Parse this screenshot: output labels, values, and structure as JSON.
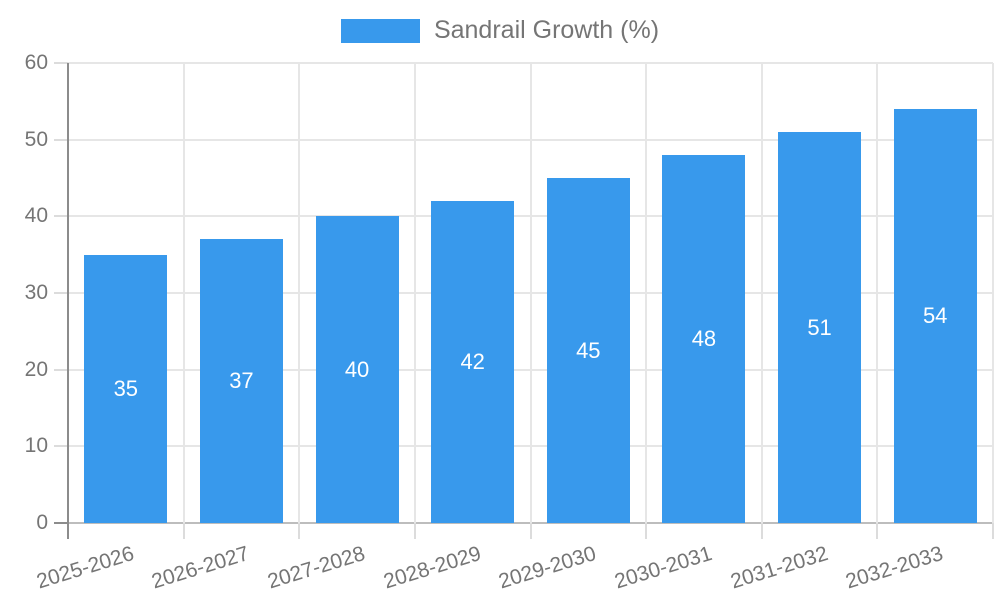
{
  "chart_data": {
    "type": "bar",
    "title": "",
    "series_name": "Sandrail Growth (%)",
    "categories": [
      "2025-2026",
      "2026-2027",
      "2027-2028",
      "2028-2029",
      "2029-2030",
      "2030-2031",
      "2031-2032",
      "2032-2033"
    ],
    "values": [
      35,
      37,
      40,
      42,
      45,
      48,
      51,
      54
    ],
    "ylim": [
      0,
      60
    ],
    "yticks": [
      0,
      10,
      20,
      30,
      40,
      50,
      60
    ],
    "grid": true,
    "legend_position": "top",
    "bar_labels_shown": true,
    "x_label_rotation_deg": -17,
    "colors": {
      "bar": "#3899ec",
      "bar_label": "#ffffff",
      "axis_text": "#757575",
      "grid_line": "#e6e6e6",
      "zero_line": "#bdbdbd",
      "axis_line": "#8c8c8c",
      "tick_mark": "#dcdcdc",
      "background": "#ffffff"
    }
  }
}
